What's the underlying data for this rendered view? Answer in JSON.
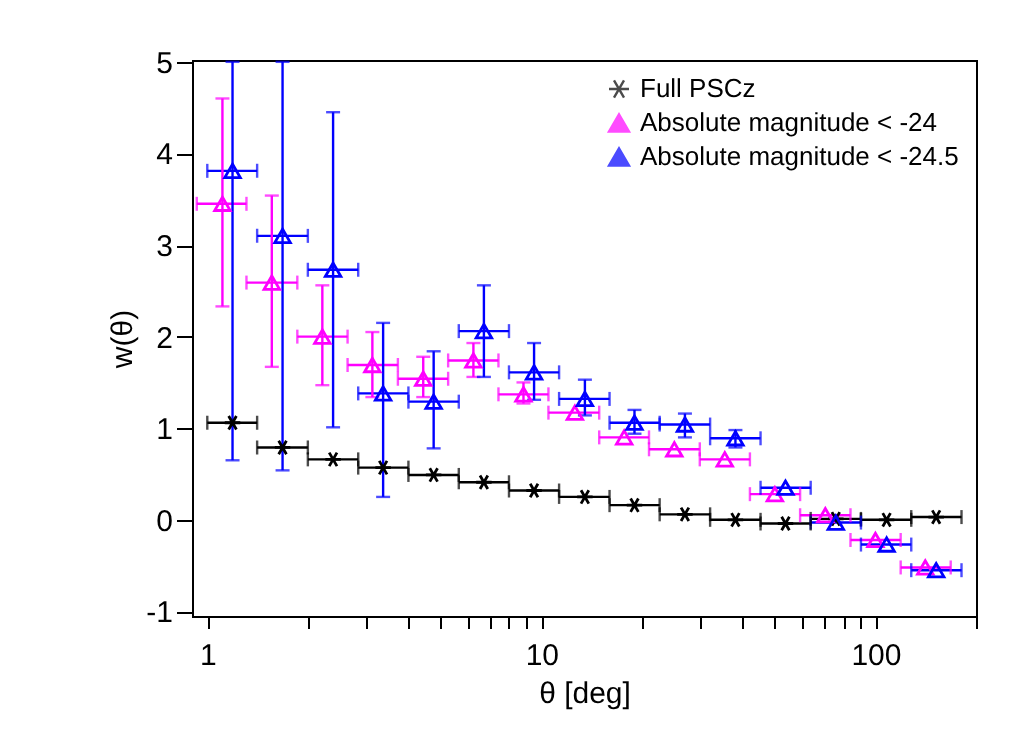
{
  "chart_data": {
    "type": "scatter",
    "xlabel": "θ [deg]",
    "ylabel": "w(θ)",
    "log": "x",
    "grid": false,
    "legend": "top right",
    "xlim": [
      0.9,
      200
    ],
    "ylim": [
      -1.05,
      5.02
    ],
    "xticks": [
      1,
      {
        "value": 2,
        "label": null
      },
      {
        "value": 3,
        "label": null
      },
      {
        "value": 4,
        "label": null
      },
      {
        "value": 5,
        "label": null
      },
      {
        "value": 6,
        "label": null
      },
      {
        "value": 7,
        "label": null
      },
      {
        "value": 8,
        "label": null
      },
      {
        "value": 9,
        "label": null
      },
      10,
      {
        "value": 20,
        "label": null
      },
      {
        "value": 30,
        "label": null
      },
      {
        "value": 40,
        "label": null
      },
      {
        "value": 50,
        "label": null
      },
      {
        "value": 60,
        "label": null
      },
      {
        "value": 70,
        "label": null
      },
      {
        "value": 80,
        "label": null
      },
      {
        "value": 90,
        "label": null
      },
      100,
      {
        "value": 200,
        "label": null
      }
    ],
    "yticks": [
      -1,
      0,
      1,
      2,
      3,
      4,
      5
    ],
    "series": [
      {
        "name": "Full PSCz",
        "color": "#000000",
        "marker": "cross",
        "x": [
          1.19,
          1.68,
          2.38,
          3.36,
          4.76,
          6.73,
          9.51,
          13.5,
          19.0,
          26.9,
          38.1,
          53.8,
          76.1,
          108,
          152
        ],
        "values": [
          1.06,
          0.79,
          0.66,
          0.57,
          0.49,
          0.41,
          0.32,
          0.25,
          0.16,
          0.06,
          0.0,
          -0.04,
          0.01,
          0.0,
          0.03
        ],
        "xerrors": [
          [
            1,
            1.41
          ],
          [
            1.41,
            2
          ],
          [
            2,
            2.83
          ],
          [
            2.83,
            4
          ],
          [
            4,
            5.66
          ],
          [
            5.66,
            8
          ],
          [
            8,
            11.3
          ],
          [
            11.3,
            16
          ],
          [
            16,
            22.6
          ],
          [
            22.6,
            32
          ],
          [
            32,
            45.3
          ],
          [
            45.3,
            64
          ],
          [
            64,
            90.5
          ],
          [
            90.5,
            128
          ],
          [
            128,
            181
          ]
        ]
      },
      {
        "name": "Absolute magnitude < -24",
        "color": "#ff00ff",
        "marker": "triangle",
        "x": [
          1.11,
          1.56,
          2.21,
          3.12,
          4.43,
          6.26,
          8.84,
          12.6,
          17.7,
          25.0,
          35.4,
          50.0,
          70.8,
          100,
          141
        ],
        "values": [
          3.45,
          2.59,
          2.0,
          1.69,
          1.54,
          1.74,
          1.37,
          1.17,
          0.9,
          0.77,
          0.66,
          0.28,
          0.05,
          -0.22,
          -0.52
        ],
        "xerrors": [
          [
            0.93,
            1.31
          ],
          [
            1.31,
            1.86
          ],
          [
            1.86,
            2.63
          ],
          [
            2.63,
            3.72
          ],
          [
            3.72,
            5.26
          ],
          [
            5.26,
            7.44
          ],
          [
            7.44,
            10.5
          ],
          [
            10.5,
            14.9
          ],
          [
            14.9,
            21.0
          ],
          [
            21.0,
            29.8
          ],
          [
            29.8,
            42.1
          ],
          [
            42.1,
            59.5
          ],
          [
            59.5,
            84.2
          ],
          [
            84.2,
            119
          ],
          [
            119,
            168
          ]
        ],
        "errors": [
          [
            2.33,
            4.6
          ],
          [
            1.67,
            3.54
          ],
          [
            1.47,
            2.56
          ],
          [
            1.34,
            2.05
          ],
          [
            1.34,
            1.78
          ],
          [
            1.56,
            1.93
          ],
          [
            1.27,
            1.5
          ],
          null,
          null,
          null,
          null,
          null,
          null,
          null,
          null
        ]
      },
      {
        "name": "Absolute magnitude < -24.5",
        "color": "#0000ff",
        "marker": "triangle",
        "x": [
          1.19,
          1.68,
          2.38,
          3.36,
          4.76,
          6.73,
          9.51,
          13.5,
          19.0,
          26.9,
          38.1,
          53.8,
          76.1,
          108,
          152
        ],
        "values": [
          3.81,
          3.1,
          2.73,
          1.38,
          1.29,
          2.06,
          1.61,
          1.32,
          1.06,
          1.04,
          0.89,
          0.35,
          -0.03,
          -0.27,
          -0.55
        ],
        "xerrors": [
          [
            1,
            1.41
          ],
          [
            1.41,
            2
          ],
          [
            2,
            2.83
          ],
          [
            2.83,
            4
          ],
          [
            4,
            5.66
          ],
          [
            5.66,
            8
          ],
          [
            8,
            11.3
          ],
          [
            11.3,
            16
          ],
          [
            16,
            22.6
          ],
          [
            22.6,
            32
          ],
          [
            32,
            45.3
          ],
          [
            45.3,
            64
          ],
          [
            64,
            90.5
          ],
          [
            90.5,
            128
          ],
          [
            128,
            181
          ]
        ],
        "errors": [
          [
            0.65,
            5.0
          ],
          [
            0.54,
            5.0
          ],
          [
            1.01,
            4.45
          ],
          [
            0.25,
            2.15
          ],
          [
            0.78,
            1.84
          ],
          [
            1.56,
            2.56
          ],
          [
            1.31,
            1.93
          ],
          [
            1.14,
            1.53
          ],
          [
            0.94,
            1.2
          ],
          [
            0.9,
            1.16
          ],
          [
            0.79,
            0.98
          ],
          null,
          null,
          null,
          null
        ]
      }
    ]
  }
}
